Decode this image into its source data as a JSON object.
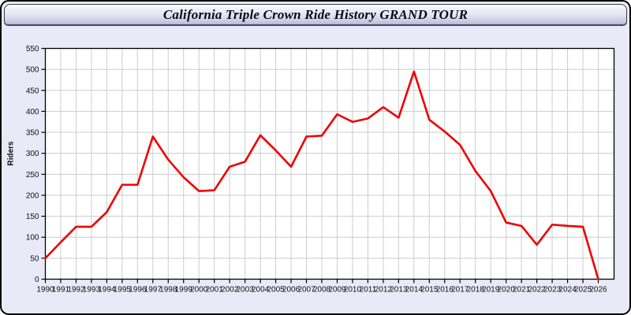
{
  "window": {
    "background": "#e9e9f7",
    "border_color": "#000000"
  },
  "title_bar": {
    "text": "California Triple Crown Ride History GRAND TOUR",
    "gradient_top": "#ffffff",
    "gradient_bottom": "#b4b4d2",
    "border_color": "#3c3c50"
  },
  "chart_data": {
    "type": "line",
    "title": "California Triple Crown Ride History GRAND TOUR",
    "xlabel": "",
    "ylabel": "Riders",
    "x": [
      1990,
      1991,
      1992,
      1993,
      1994,
      1995,
      1996,
      1997,
      1998,
      1999,
      2000,
      2001,
      2002,
      2003,
      2004,
      2005,
      2006,
      2007,
      2008,
      2009,
      2010,
      2011,
      2012,
      2013,
      2014,
      2015,
      2016,
      2017,
      2018,
      2019,
      2020,
      2021,
      2022,
      2023,
      2024,
      2025,
      2026
    ],
    "values": [
      50,
      88,
      125,
      125,
      160,
      225,
      225,
      340,
      285,
      243,
      210,
      212,
      268,
      280,
      343,
      307,
      268,
      340,
      342,
      393,
      375,
      383,
      410,
      385,
      495,
      380,
      352,
      320,
      258,
      210,
      135,
      127,
      82,
      130,
      127,
      125,
      0
    ],
    "ylim": [
      0,
      550
    ],
    "ytick_step": 50,
    "yticks": [
      0,
      50,
      100,
      150,
      200,
      250,
      300,
      350,
      400,
      450,
      500,
      550
    ],
    "grid": true,
    "legend": "none",
    "series_name": "Riders",
    "line_color": "#ee0000",
    "plot_background": "#ffffff",
    "grid_color": "#cccccc",
    "axis_color": "#000000",
    "tick_label_color": "#111111"
  }
}
